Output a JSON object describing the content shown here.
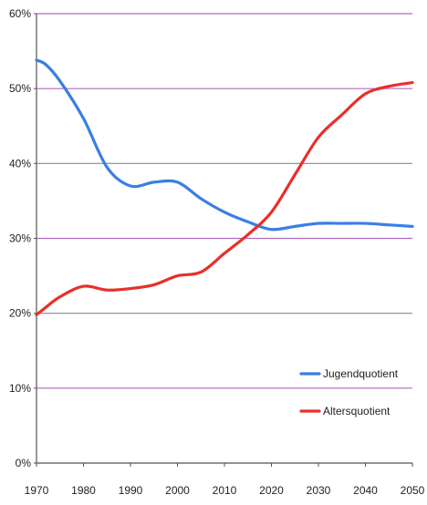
{
  "chart_data": {
    "type": "line",
    "x": [
      1970,
      1972,
      1975,
      1980,
      1985,
      1990,
      1995,
      2000,
      2005,
      2010,
      2015,
      2020,
      2025,
      2030,
      2035,
      2040,
      2045,
      2050
    ],
    "series": [
      {
        "name": "Jugendquotient",
        "color": "#3a7ee6",
        "values": [
          53.8,
          53.2,
          51.0,
          46.0,
          39.5,
          37.0,
          37.5,
          37.5,
          35.3,
          33.5,
          32.2,
          31.2,
          31.6,
          32.0,
          32.0,
          32.0,
          31.8,
          31.6
        ]
      },
      {
        "name": "Altersquotient",
        "color": "#e8302a",
        "values": [
          19.8,
          20.8,
          22.2,
          23.6,
          23.1,
          23.3,
          23.8,
          25.0,
          25.5,
          28.0,
          30.5,
          33.5,
          38.5,
          43.5,
          46.5,
          49.3,
          50.3,
          50.8
        ]
      }
    ],
    "xticks": [
      "1970",
      "1980",
      "1990",
      "2000",
      "2010",
      "2020",
      "2030",
      "2040",
      "2050"
    ],
    "yticks": [
      "0%",
      "10%",
      "20%",
      "30%",
      "40%",
      "50%",
      "60%"
    ],
    "xlim": [
      1970,
      2050
    ],
    "ylim": [
      0,
      60
    ],
    "grid": true,
    "gridline_colors": {
      "purple": "#b06bbf",
      "gray": "#888888"
    },
    "legend_position": "bottom-right",
    "title": "",
    "xlabel": "",
    "ylabel": ""
  }
}
